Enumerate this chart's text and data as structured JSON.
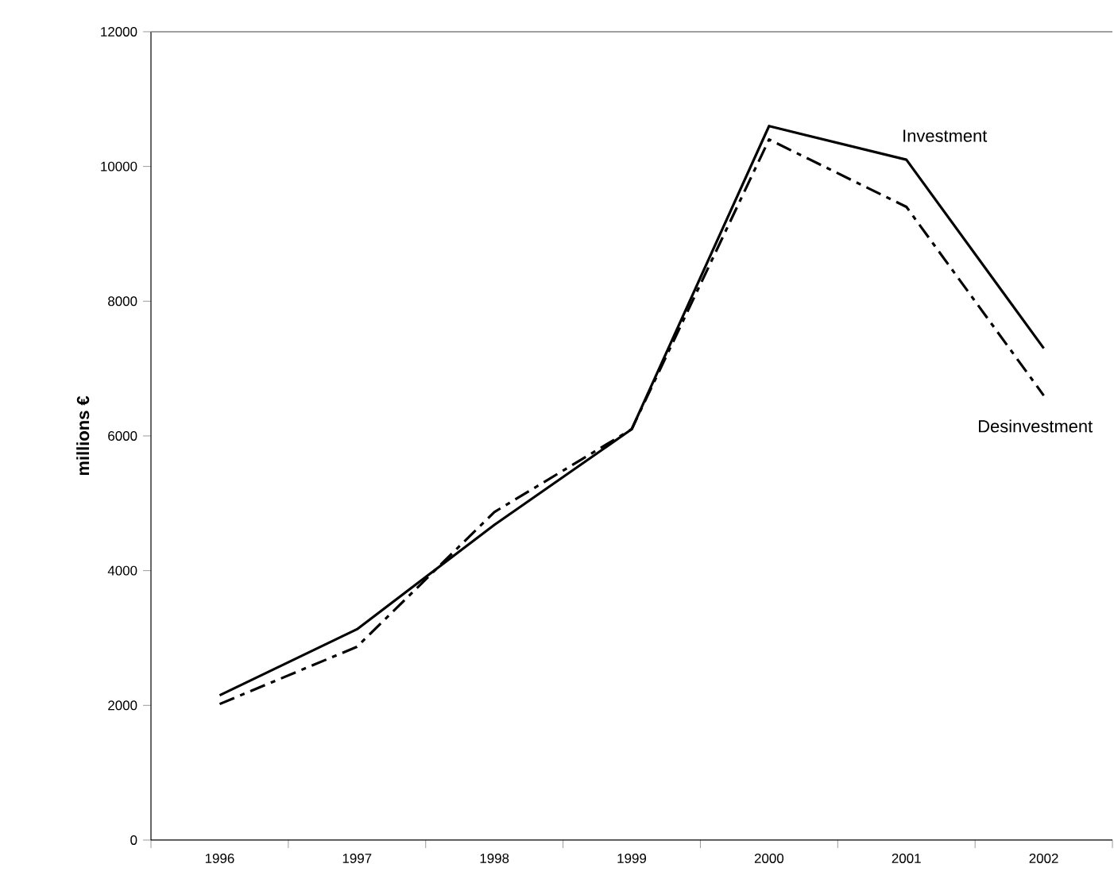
{
  "chart_data": {
    "type": "line",
    "ylabel": "millions €",
    "categories": [
      "1996",
      "1997",
      "1998",
      "1999",
      "2000",
      "2001",
      "2002"
    ],
    "series": [
      {
        "name": "Investment",
        "color": "#000000",
        "line_style": "solid",
        "values": [
          2150,
          3130,
          4680,
          6100,
          10600,
          10100,
          7300
        ]
      },
      {
        "name": "Desinvestment",
        "color": "#000000",
        "line_style": "dashed",
        "values": [
          2020,
          2870,
          4870,
          6100,
          10400,
          9400,
          6600
        ]
      }
    ],
    "ylim": [
      0,
      12000
    ],
    "yticks": [
      0,
      2000,
      4000,
      6000,
      8000,
      10000,
      12000
    ],
    "grid": false,
    "legend": false,
    "marker": "none"
  }
}
